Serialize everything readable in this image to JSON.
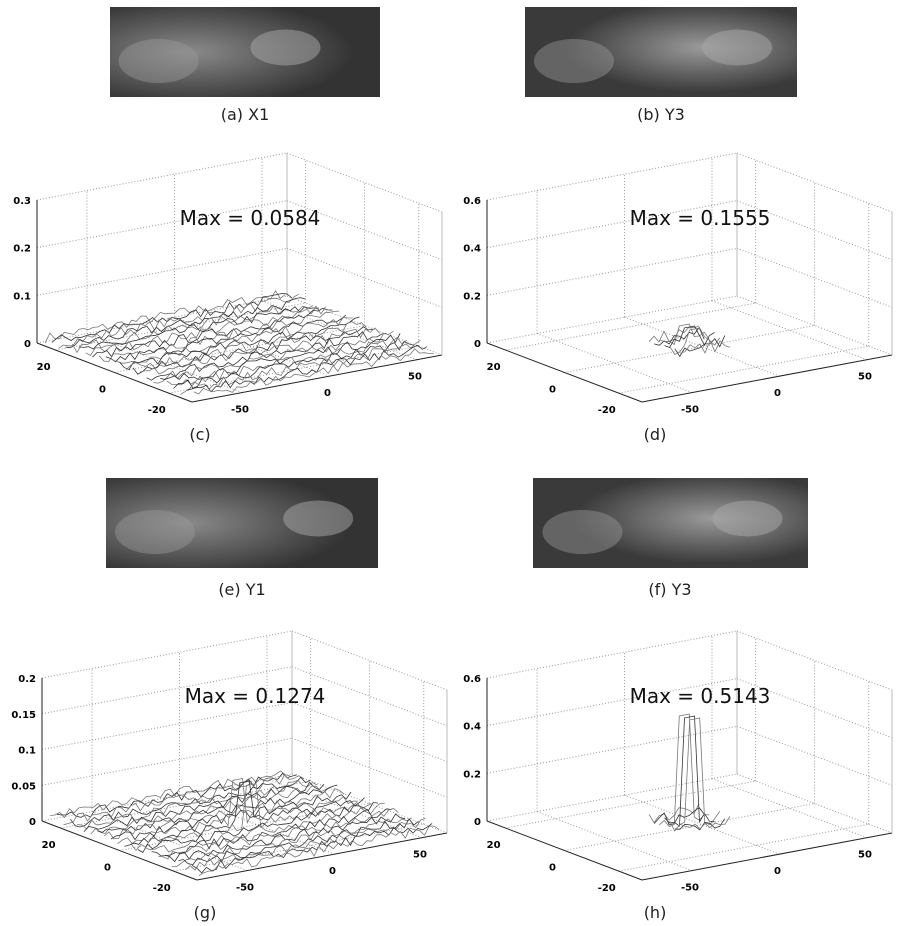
{
  "images": [
    {
      "caption": "(a) X1"
    },
    {
      "caption": "(b) Y3"
    },
    {
      "caption": "(e) Y1"
    },
    {
      "caption": "(f) Y3"
    }
  ],
  "plots": [
    {
      "caption": "(c)",
      "annotation": "Max = 0.0584",
      "zticks": [
        "0",
        "0.1",
        "0.2",
        "0.3"
      ],
      "yticks": [
        "20",
        "0",
        "-20"
      ],
      "xticks": [
        "-50",
        "0",
        "50"
      ]
    },
    {
      "caption": "(d)",
      "annotation": "Max = 0.1555",
      "zticks": [
        "0",
        "0.2",
        "0.4",
        "0.6"
      ],
      "yticks": [
        "20",
        "0",
        "-20"
      ],
      "xticks": [
        "-50",
        "0",
        "50"
      ]
    },
    {
      "caption": "(g)",
      "annotation": "Max = 0.1274",
      "zticks": [
        "0",
        "0.05",
        "0.1",
        "0.15",
        "0.2"
      ],
      "yticks": [
        "20",
        "0",
        "-20"
      ],
      "xticks": [
        "-50",
        "0",
        "50"
      ]
    },
    {
      "caption": "(h)",
      "annotation": "Max = 0.5143",
      "zticks": [
        "0",
        "0.2",
        "0.4",
        "0.6"
      ],
      "yticks": [
        "20",
        "0",
        "-20"
      ],
      "xticks": [
        "-50",
        "0",
        "50"
      ]
    }
  ]
}
